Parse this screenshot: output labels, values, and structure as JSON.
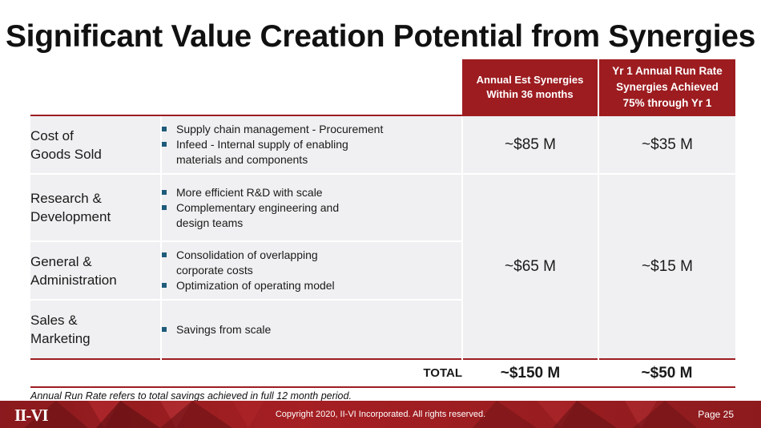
{
  "title": "Significant Value Creation Potential from Synergies",
  "table": {
    "headers": {
      "col1": "Annual Est Synergies\nWithin 36 months",
      "col1_lines": [
        "Annual Est Synergies",
        "Within 36 months"
      ],
      "col2_lines": [
        "Yr 1 Annual Run Rate",
        "Synergies Achieved",
        "75% through Yr 1"
      ]
    },
    "rows": [
      {
        "category_lines": [
          "Cost of",
          "Goods Sold"
        ],
        "bullets": [
          [
            "Supply chain management - Procurement"
          ],
          [
            "Infeed - Internal supply of enabling",
            "materials and components"
          ]
        ],
        "est": "~$85 M",
        "run_rate": "~$35 M"
      },
      {
        "category_lines": [
          "Research &",
          "Development"
        ],
        "bullets": [
          [
            "More efficient R&D with scale"
          ],
          [
            "Complementary engineering and",
            "design teams"
          ]
        ]
      },
      {
        "category_lines": [
          "General &",
          "Administration"
        ],
        "bullets": [
          [
            "Consolidation of overlapping",
            "corporate costs"
          ],
          [
            "Optimization of operating model"
          ]
        ]
      },
      {
        "category_lines": [
          "Sales &",
          "Marketing"
        ],
        "bullets": [
          [
            "Savings from scale"
          ]
        ]
      }
    ],
    "merged_est": "~$65 M",
    "merged_run_rate": "~$15 M",
    "total_label": "TOTAL",
    "total_est": "~$150 M",
    "total_run_rate": "~$50 M"
  },
  "footnote": "Annual Run Rate refers to total savings achieved in full 12 month period.",
  "footer": {
    "logo": "II-VI",
    "copyright": "Copyright 2020, II-VI Incorporated. All rights reserved.",
    "page": "Page 25"
  },
  "colors": {
    "accent": "#9d1c20",
    "row_bg": "#f0f0f2",
    "bullet": "#1f5b7a"
  }
}
